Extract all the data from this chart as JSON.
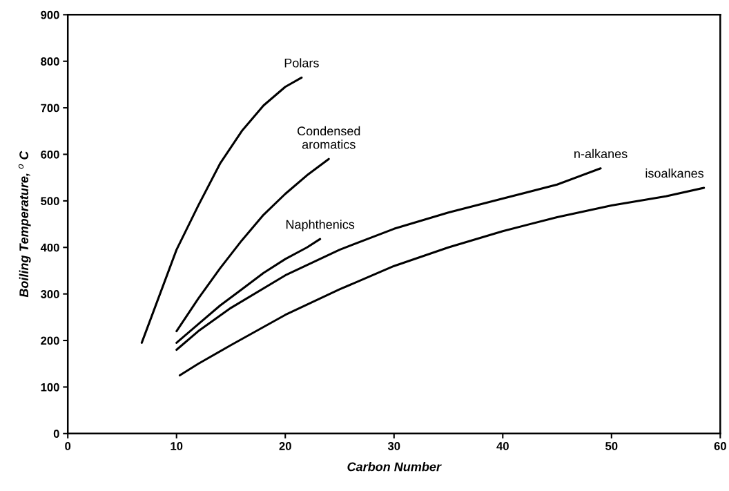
{
  "chart_data": {
    "type": "line",
    "xlabel": "Carbon Number",
    "ylabel": "Boiling Temperature, $^{o}$ C",
    "xlim": [
      0,
      60
    ],
    "xticks": [
      0,
      10,
      20,
      30,
      40,
      50,
      60
    ],
    "ylim": [
      0,
      900
    ],
    "yticks": [
      0,
      100,
      200,
      300,
      400,
      500,
      600,
      700,
      800,
      900
    ],
    "grid": false,
    "legend": false,
    "marker": "none",
    "line_style": "solid",
    "series": [
      {
        "name": "Polars",
        "color": "#000000",
        "x": [
          6.8,
          8,
          10,
          12,
          14,
          16,
          18,
          20,
          21.5
        ],
        "values": [
          195,
          270,
          395,
          490,
          580,
          650,
          705,
          745,
          765
        ]
      },
      {
        "name": "Condensed\naromatics",
        "color": "#000000",
        "x": [
          10,
          12,
          14,
          16,
          18,
          20,
          22,
          24
        ],
        "values": [
          220,
          290,
          355,
          415,
          470,
          515,
          555,
          590
        ]
      },
      {
        "name": "Naphthenics",
        "color": "#000000",
        "x": [
          10,
          12,
          14,
          16,
          18,
          20,
          22,
          23.2
        ],
        "values": [
          195,
          235,
          275,
          310,
          345,
          375,
          400,
          418
        ]
      },
      {
        "name": "n-alkanes",
        "color": "#000000",
        "x": [
          10,
          12,
          15,
          20,
          25,
          30,
          35,
          40,
          45,
          49
        ],
        "values": [
          180,
          220,
          270,
          340,
          395,
          440,
          475,
          505,
          535,
          570
        ]
      },
      {
        "name": "isoalkanes",
        "color": "#000000",
        "x": [
          10.3,
          12,
          15,
          20,
          25,
          30,
          35,
          40,
          45,
          50,
          55,
          58.5
        ],
        "values": [
          125,
          150,
          190,
          255,
          310,
          360,
          400,
          435,
          465,
          490,
          510,
          528
        ]
      }
    ]
  }
}
